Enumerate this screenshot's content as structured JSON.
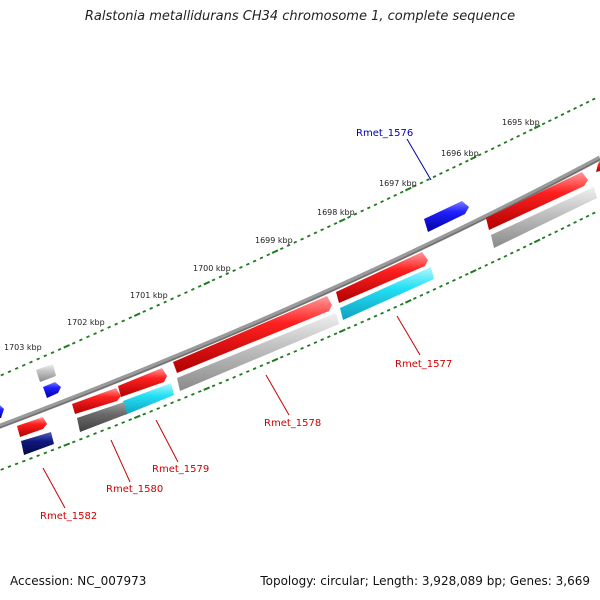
{
  "title": "Ralstonia metallidurans CH34 chromosome 1, complete sequence",
  "footer": {
    "accession_label": "Accession:",
    "accession": "NC_007973",
    "topology_label": "Topology:",
    "topology": "circular",
    "length_label": "Length:",
    "length": "3,928,089 bp",
    "genes_label": "Genes:",
    "genes": "3,669"
  },
  "colors": {
    "backbone": "#7a7a7a",
    "tick": "#1f7a1f",
    "forward_cds": "#ee1111",
    "reverse_cds": "#1a1aee",
    "gray_feature": "#b5b5b5",
    "dark_gray_feature": "#6a6a6a",
    "cyan_feature": "#22ddf0",
    "navy_feature": "#101880",
    "label_red": "#cc0000",
    "label_blue": "#0000aa"
  },
  "scale_labels": [
    "1695 kbp",
    "1696 kbp",
    "1697 kbp",
    "1698 kbp",
    "1699 kbp",
    "1700 kbp",
    "1701 kbp",
    "1702 kbp",
    "1703 kbp"
  ],
  "gene_labels": {
    "rmet_1576": "Rmet_1576",
    "rmet_1577": "Rmet_1577",
    "rmet_1578": "Rmet_1578",
    "rmet_1579": "Rmet_1579",
    "rmet_1580": "Rmet_1580",
    "rmet_1582": "Rmet_1582"
  }
}
